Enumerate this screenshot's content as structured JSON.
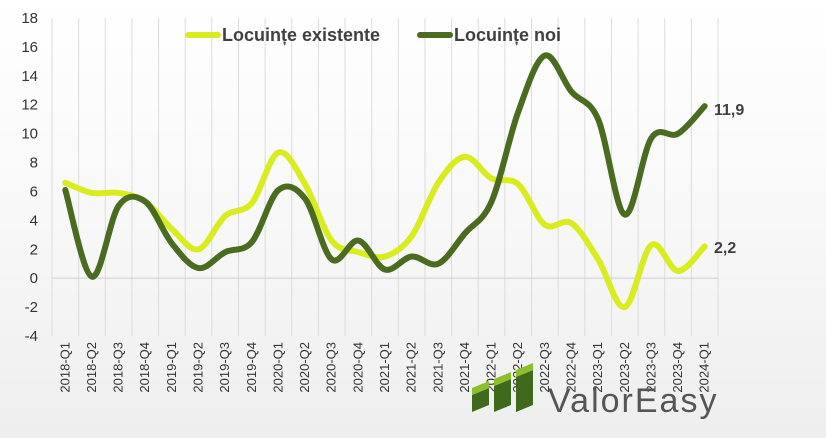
{
  "chart_data": {
    "type": "line",
    "categories": [
      "2018-Q1",
      "2018-Q2",
      "2018-Q3",
      "2018-Q4",
      "2019-Q1",
      "2019-Q2",
      "2019-Q3",
      "2019-Q4",
      "2020-Q1",
      "2020-Q2",
      "2020-Q3",
      "2020-Q4",
      "2021-Q1",
      "2021-Q2",
      "2021-Q3",
      "2021-Q4",
      "2022-Q1",
      "2022-Q2",
      "2022-Q3",
      "2022-Q4",
      "2023-Q1",
      "2023-Q2",
      "2023-Q3",
      "2023-Q4",
      "2024-Q1"
    ],
    "series": [
      {
        "name": "Locuințe existente",
        "color": "#d9ec1f",
        "values": [
          6.6,
          5.9,
          5.9,
          5.3,
          3.4,
          2.0,
          4.3,
          5.2,
          8.7,
          6.5,
          2.6,
          1.8,
          1.5,
          2.9,
          6.6,
          8.4,
          6.9,
          6.5,
          3.7,
          3.8,
          1.3,
          -2.0,
          2.3,
          0.5,
          2.2
        ]
      },
      {
        "name": "Locuințe noi",
        "color": "#4a6b20",
        "values": [
          6.1,
          0.1,
          5.0,
          5.3,
          2.4,
          0.7,
          1.8,
          2.5,
          6.1,
          5.5,
          1.3,
          2.6,
          0.6,
          1.5,
          1.0,
          3.1,
          5.3,
          11.5,
          15.4,
          12.9,
          11.0,
          4.4,
          9.7,
          10.0,
          11.9
        ]
      }
    ],
    "ylim": [
      -4,
      18
    ],
    "yticks": [
      "-4",
      "-2",
      "0",
      "2",
      "4",
      "6",
      "8",
      "10",
      "12",
      "14",
      "16",
      "18"
    ],
    "end_labels": {
      "existente": "2,2",
      "noi": "11,9"
    },
    "grid": "vertical",
    "legend_position": "top"
  },
  "logo": {
    "first": "Valor",
    "second": "Easy"
  }
}
